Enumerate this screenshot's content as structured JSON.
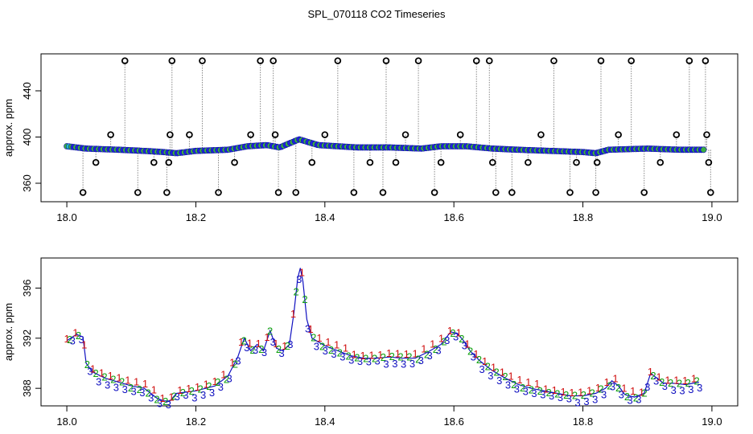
{
  "figure": {
    "title": "SPL_070118  CO2 Timeseries"
  },
  "chart_data": [
    {
      "type": "scatter",
      "xlabel": "",
      "ylabel": "approx. ppm",
      "xlim": [
        17.96,
        19.04
      ],
      "ylim": [
        344,
        472
      ],
      "x_ticks": [
        "18.0",
        "18.2",
        "18.4",
        "18.6",
        "18.8",
        "19.0"
      ],
      "y_ticks": [
        "360",
        "400",
        "440"
      ],
      "baseline": [
        [
          18.0,
          392
        ],
        [
          18.03,
          390
        ],
        [
          18.08,
          389
        ],
        [
          18.12,
          388
        ],
        [
          18.15,
          387
        ],
        [
          18.17,
          386
        ],
        [
          18.2,
          388
        ],
        [
          18.25,
          389
        ],
        [
          18.28,
          392
        ],
        [
          18.31,
          393
        ],
        [
          18.33,
          391
        ],
        [
          18.36,
          398
        ],
        [
          18.39,
          393
        ],
        [
          18.45,
          391
        ],
        [
          18.5,
          391
        ],
        [
          18.55,
          390
        ],
        [
          18.58,
          392
        ],
        [
          18.62,
          392
        ],
        [
          18.66,
          390
        ],
        [
          18.7,
          389
        ],
        [
          18.75,
          388
        ],
        [
          18.8,
          387
        ],
        [
          18.82,
          386
        ],
        [
          18.84,
          389
        ],
        [
          18.9,
          390
        ],
        [
          18.95,
          389
        ],
        [
          18.99,
          389
        ]
      ],
      "outliers": [
        [
          18.025,
          352
        ],
        [
          18.045,
          378
        ],
        [
          18.068,
          402
        ],
        [
          18.09,
          466
        ],
        [
          18.11,
          352
        ],
        [
          18.135,
          378
        ],
        [
          18.155,
          352
        ],
        [
          18.158,
          378
        ],
        [
          18.16,
          402
        ],
        [
          18.163,
          466
        ],
        [
          18.19,
          402
        ],
        [
          18.21,
          466
        ],
        [
          18.235,
          352
        ],
        [
          18.26,
          378
        ],
        [
          18.285,
          402
        ],
        [
          18.3,
          466
        ],
        [
          18.32,
          466
        ],
        [
          18.323,
          402
        ],
        [
          18.328,
          352
        ],
        [
          18.355,
          352
        ],
        [
          18.38,
          378
        ],
        [
          18.4,
          402
        ],
        [
          18.42,
          466
        ],
        [
          18.445,
          352
        ],
        [
          18.47,
          378
        ],
        [
          18.49,
          352
        ],
        [
          18.495,
          466
        ],
        [
          18.51,
          378
        ],
        [
          18.525,
          402
        ],
        [
          18.545,
          466
        ],
        [
          18.57,
          352
        ],
        [
          18.58,
          378
        ],
        [
          18.61,
          402
        ],
        [
          18.635,
          466
        ],
        [
          18.655,
          466
        ],
        [
          18.66,
          378
        ],
        [
          18.665,
          352
        ],
        [
          18.69,
          352
        ],
        [
          18.715,
          378
        ],
        [
          18.735,
          402
        ],
        [
          18.755,
          466
        ],
        [
          18.78,
          352
        ],
        [
          18.79,
          378
        ],
        [
          18.82,
          352
        ],
        [
          18.822,
          378
        ],
        [
          18.828,
          466
        ],
        [
          18.855,
          402
        ],
        [
          18.875,
          466
        ],
        [
          18.895,
          352
        ],
        [
          18.92,
          378
        ],
        [
          18.945,
          402
        ],
        [
          18.965,
          466
        ],
        [
          18.99,
          466
        ],
        [
          18.992,
          402
        ],
        [
          18.995,
          378
        ],
        [
          18.998,
          352
        ]
      ]
    },
    {
      "type": "scatter",
      "xlabel": "",
      "ylabel": "approx. ppm",
      "xlim": [
        17.96,
        19.04
      ],
      "ylim": [
        386.6,
        398.4
      ],
      "x_ticks": [
        "18.0",
        "18.2",
        "18.4",
        "18.6",
        "18.8",
        "19.0"
      ],
      "y_ticks": [
        "388",
        "392",
        "396"
      ],
      "point_labels": [
        "1",
        "2",
        "3"
      ],
      "series": [
        [
          18.0,
          391.8
        ],
        [
          18.015,
          392.3
        ],
        [
          18.025,
          392.1
        ],
        [
          18.03,
          390.0
        ],
        [
          18.04,
          389.3
        ],
        [
          18.06,
          388.8
        ],
        [
          18.08,
          388.5
        ],
        [
          18.1,
          388.2
        ],
        [
          18.12,
          388.0
        ],
        [
          18.13,
          387.6
        ],
        [
          18.14,
          387.2
        ],
        [
          18.15,
          387.0
        ],
        [
          18.16,
          387.0
        ],
        [
          18.17,
          387.6
        ],
        [
          18.2,
          387.8
        ],
        [
          18.23,
          388.2
        ],
        [
          18.25,
          389.0
        ],
        [
          18.265,
          390.5
        ],
        [
          18.275,
          392.0
        ],
        [
          18.285,
          391.0
        ],
        [
          18.295,
          391.5
        ],
        [
          18.305,
          391.0
        ],
        [
          18.315,
          392.6
        ],
        [
          18.325,
          391.2
        ],
        [
          18.335,
          391.0
        ],
        [
          18.345,
          391.5
        ],
        [
          18.352,
          394.0
        ],
        [
          18.358,
          396.8
        ],
        [
          18.362,
          397.6
        ],
        [
          18.366,
          396.5
        ],
        [
          18.372,
          393.5
        ],
        [
          18.38,
          392.0
        ],
        [
          18.4,
          391.4
        ],
        [
          18.42,
          391.0
        ],
        [
          18.44,
          390.6
        ],
        [
          18.46,
          390.4
        ],
        [
          18.48,
          390.4
        ],
        [
          18.5,
          390.5
        ],
        [
          18.52,
          390.4
        ],
        [
          18.54,
          390.4
        ],
        [
          18.56,
          390.9
        ],
        [
          18.58,
          391.5
        ],
        [
          18.595,
          392.5
        ],
        [
          18.605,
          392.4
        ],
        [
          18.615,
          391.8
        ],
        [
          18.625,
          391.0
        ],
        [
          18.64,
          390.2
        ],
        [
          18.65,
          389.8
        ],
        [
          18.66,
          389.4
        ],
        [
          18.68,
          388.8
        ],
        [
          18.7,
          388.3
        ],
        [
          18.72,
          388.0
        ],
        [
          18.74,
          387.8
        ],
        [
          18.76,
          387.6
        ],
        [
          18.78,
          387.4
        ],
        [
          18.8,
          387.4
        ],
        [
          18.82,
          387.6
        ],
        [
          18.835,
          388.0
        ],
        [
          18.845,
          388.6
        ],
        [
          18.855,
          388.2
        ],
        [
          18.865,
          387.5
        ],
        [
          18.88,
          387.3
        ],
        [
          18.895,
          387.6
        ],
        [
          18.905,
          389.2
        ],
        [
          18.915,
          388.8
        ],
        [
          18.925,
          388.4
        ],
        [
          18.94,
          388.4
        ],
        [
          18.96,
          388.3
        ],
        [
          18.98,
          388.5
        ]
      ]
    }
  ]
}
